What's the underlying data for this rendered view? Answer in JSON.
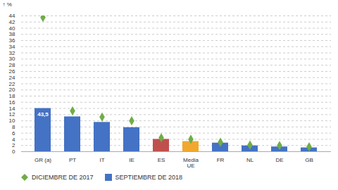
{
  "chart_data": {
    "type": "bar",
    "categories": [
      "GR (a)",
      "PT",
      "IT",
      "IE",
      "ES",
      "Media\nUE",
      "FR",
      "NL",
      "DE",
      "GB"
    ],
    "series": [
      {
        "name": "DICIEMBRE DE 2017",
        "type": "scatter",
        "marker": "diamond",
        "color": "#70ad47",
        "values": [
          43.5,
          13.2,
          11.2,
          10.0,
          4.5,
          4.0,
          3.05,
          2.15,
          2.0,
          1.6
        ]
      },
      {
        "name": "SEPTIEMBRE DE 2018",
        "type": "bar",
        "color": "#4472c4",
        "colors": [
          "#4472c4",
          "#4472c4",
          "#4472c4",
          "#4472c4",
          "#c0504d",
          "#f0a830",
          "#4472c4",
          "#4472c4",
          "#4472c4",
          "#4472c4"
        ],
        "values": [
          14.0,
          11.3,
          9.5,
          7.8,
          4.0,
          3.3,
          2.8,
          1.9,
          1.55,
          1.25
        ]
      }
    ],
    "annotations": [
      {
        "text": "43,5",
        "x": "GR (a)",
        "y": 14.0
      }
    ],
    "ylabel": "%",
    "ylim": [
      0,
      44
    ],
    "yticks": [
      0,
      2,
      4,
      6,
      8,
      10,
      12,
      14,
      16,
      18,
      20,
      22,
      24,
      26,
      28,
      30,
      32,
      34,
      36,
      38,
      40,
      42,
      44
    ],
    "grid": true,
    "legend": "bottom left"
  }
}
